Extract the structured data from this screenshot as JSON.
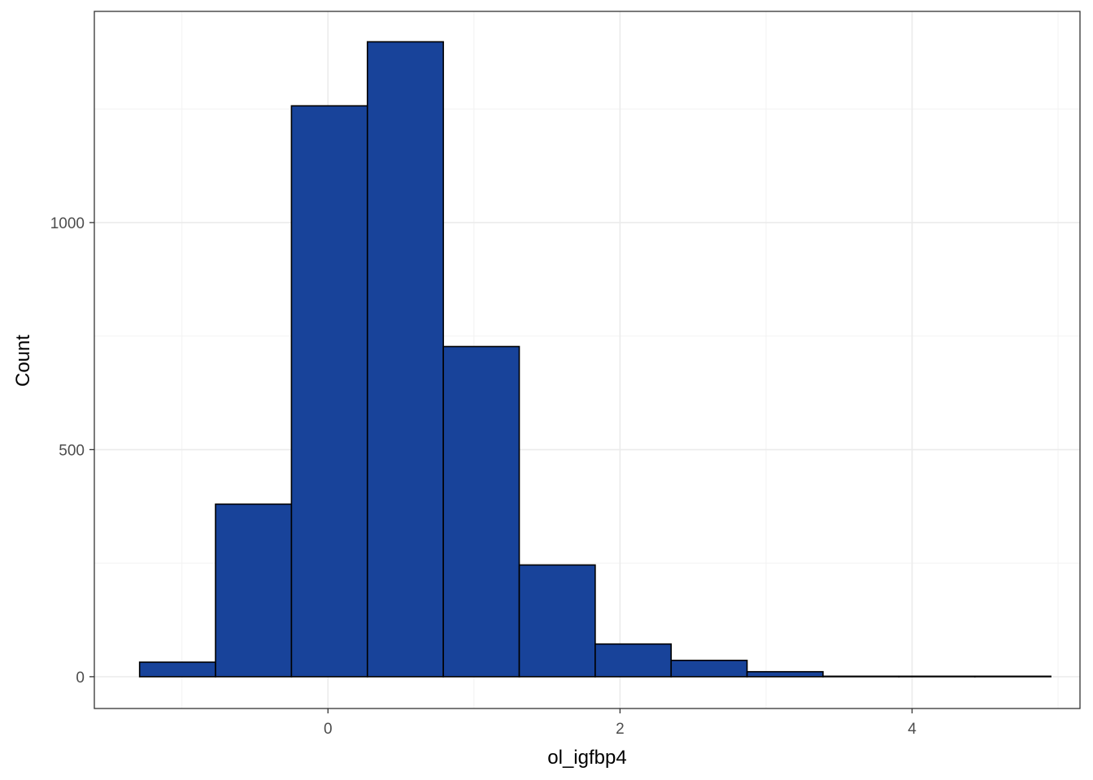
{
  "chart_data": {
    "type": "bar",
    "subtype": "histogram",
    "xlabel": "ol_igfbp4",
    "ylabel": "Count",
    "xlim": [
      -1.6,
      5.15
    ],
    "ylim": [
      -70,
      1465
    ],
    "x_ticks": [
      0,
      2,
      4
    ],
    "y_ticks": [
      0,
      500,
      1000
    ],
    "x_tick_labels": [
      "0",
      "2",
      "4"
    ],
    "y_tick_labels": [
      "0",
      "500",
      "1000"
    ],
    "grid": true,
    "legend": "none",
    "bar_fill": "#18439a",
    "bar_outline": "#000000",
    "bins": [
      {
        "x0": -1.29,
        "x1": -0.77,
        "count": 32
      },
      {
        "x0": -0.77,
        "x1": -0.25,
        "count": 380
      },
      {
        "x0": -0.25,
        "x1": 0.27,
        "count": 1257
      },
      {
        "x0": 0.27,
        "x1": 0.79,
        "count": 1398
      },
      {
        "x0": 0.79,
        "x1": 1.31,
        "count": 727
      },
      {
        "x0": 1.31,
        "x1": 1.83,
        "count": 246
      },
      {
        "x0": 1.83,
        "x1": 2.35,
        "count": 72
      },
      {
        "x0": 2.35,
        "x1": 2.87,
        "count": 36
      },
      {
        "x0": 2.87,
        "x1": 3.39,
        "count": 11
      },
      {
        "x0": 3.39,
        "x1": 3.91,
        "count": 1
      },
      {
        "x0": 3.91,
        "x1": 4.43,
        "count": 1
      },
      {
        "x0": 4.43,
        "x1": 4.95,
        "count": 1
      }
    ]
  }
}
